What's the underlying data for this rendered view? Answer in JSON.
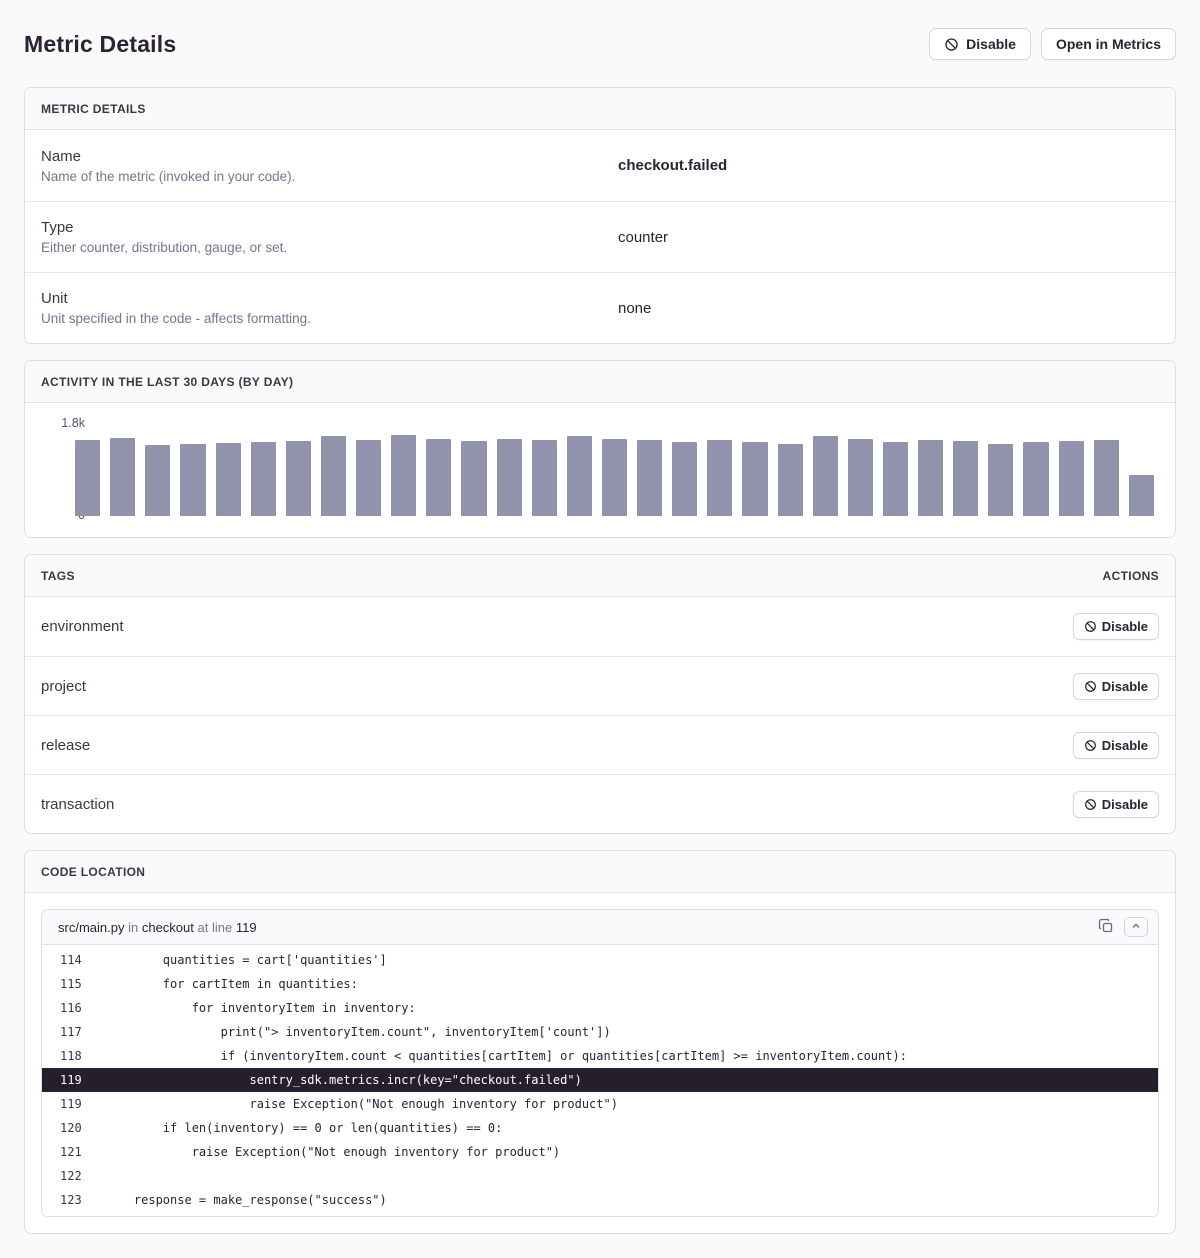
{
  "page": {
    "title": "Metric Details"
  },
  "topbar": {
    "disable_label": "Disable",
    "open_in_metrics_label": "Open in Metrics"
  },
  "metric_details": {
    "header": "METRIC DETAILS",
    "rows": [
      {
        "label": "Name",
        "description": "Name of the metric (invoked in your code).",
        "value": "checkout.failed"
      },
      {
        "label": "Type",
        "description": "Either counter, distribution, gauge, or set.",
        "value": "counter"
      },
      {
        "label": "Unit",
        "description": "Unit specified in the code - affects formatting.",
        "value": "none"
      }
    ]
  },
  "activity": {
    "header": "ACTIVITY IN THE LAST 30 DAYS (BY DAY)",
    "chart_data": {
      "type": "bar",
      "title": "ACTIVITY IN THE LAST 30 DAYS (BY DAY)",
      "ylim": [
        0,
        1800
      ],
      "y_tick_labels": [
        "0",
        "1.8k"
      ],
      "grid": false,
      "bar_color": "#9192ac",
      "values": [
        1514,
        1560,
        1428,
        1448,
        1468,
        1481,
        1501,
        1594,
        1527,
        1620,
        1547,
        1501,
        1534,
        1514,
        1607,
        1534,
        1521,
        1487,
        1527,
        1481,
        1434,
        1594,
        1547,
        1487,
        1514,
        1494,
        1441,
        1487,
        1494,
        1521,
        817
      ]
    }
  },
  "tags": {
    "header": "TAGS",
    "actions_header": "ACTIONS",
    "disable_label": "Disable",
    "items": [
      "environment",
      "project",
      "release",
      "transaction"
    ]
  },
  "code_location": {
    "header": "CODE LOCATION",
    "file": "src/main.py",
    "in_word": "in",
    "function": "checkout",
    "at_line_words": "at line",
    "line_number": "119",
    "lines": [
      {
        "no": "114",
        "code": "        quantities = cart['quantities']",
        "highlight": false
      },
      {
        "no": "115",
        "code": "        for cartItem in quantities:",
        "highlight": false
      },
      {
        "no": "116",
        "code": "            for inventoryItem in inventory:",
        "highlight": false
      },
      {
        "no": "117",
        "code": "                print(\"> inventoryItem.count\", inventoryItem['count'])",
        "highlight": false
      },
      {
        "no": "118",
        "code": "                if (inventoryItem.count < quantities[cartItem] or quantities[cartItem] >= inventoryItem.count):",
        "highlight": false
      },
      {
        "no": "119",
        "code": "                    sentry_sdk.metrics.incr(key=\"checkout.failed\")",
        "highlight": true
      },
      {
        "no": "119",
        "code": "                    raise Exception(\"Not enough inventory for product\")",
        "highlight": false
      },
      {
        "no": "120",
        "code": "        if len(inventory) == 0 or len(quantities) == 0:",
        "highlight": false
      },
      {
        "no": "121",
        "code": "            raise Exception(\"Not enough inventory for product\")",
        "highlight": false
      },
      {
        "no": "122",
        "code": "",
        "highlight": false
      },
      {
        "no": "123",
        "code": "    response = make_response(\"success\")",
        "highlight": false
      }
    ]
  },
  "colors": {
    "page_background": "#fafafb",
    "panel_border": "#e0dce6",
    "bar_color": "#9192ac",
    "highlight_row_background": "#251f2d",
    "heading_text": "#2b2233",
    "muted_text": "#80708f"
  }
}
